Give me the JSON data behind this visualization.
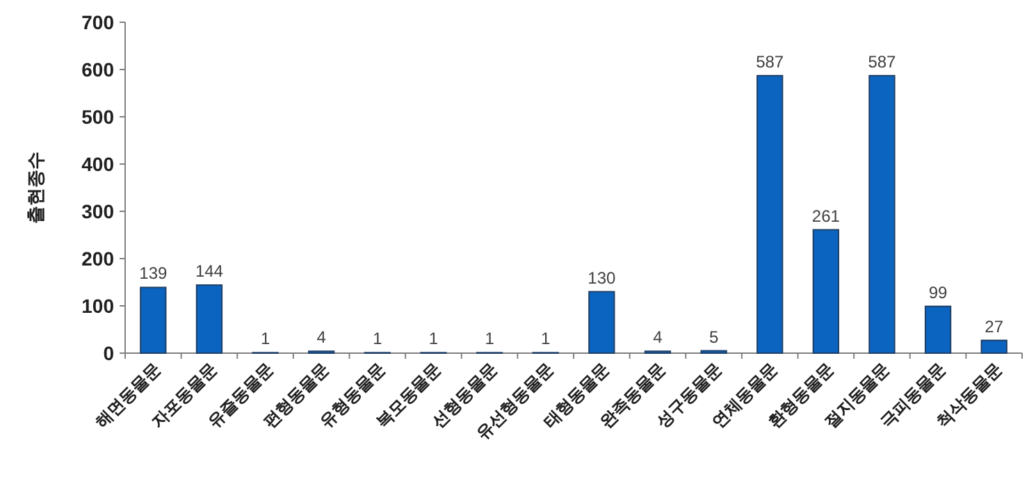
{
  "chart_data": {
    "type": "bar",
    "ylabel": "출현종수",
    "categories": [
      "해면동물문",
      "자포동물문",
      "유즐동물문",
      "편형동물문",
      "유형동물문",
      "복모동물문",
      "선형동물문",
      "유선형동물문",
      "태형동물문",
      "완족동물문",
      "성구동물문",
      "연체동물문",
      "환형동물문",
      "절지동물문",
      "극피동물문",
      "척삭동물문"
    ],
    "values": [
      139,
      144,
      1,
      4,
      1,
      1,
      1,
      1,
      130,
      4,
      5,
      587,
      261,
      587,
      99,
      27
    ],
    "color": "#0a64c0",
    "ylim": [
      0,
      700
    ],
    "yticks": [
      0,
      100,
      200,
      300,
      400,
      500,
      600,
      700
    ],
    "data_labels": true
  }
}
